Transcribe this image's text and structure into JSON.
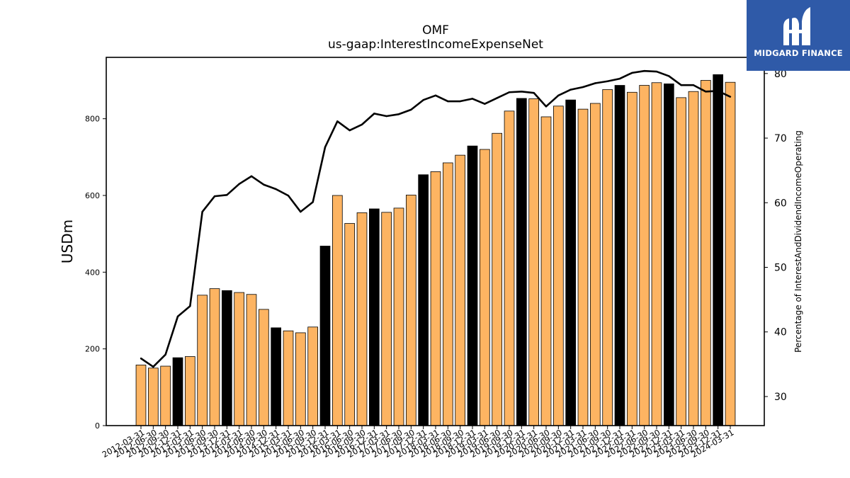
{
  "chart_data": {
    "type": "bar",
    "title": "OMF",
    "subtitle": "us-gaap:InterestIncomeExpenseNet",
    "ylabel": "USDm",
    "y2label": "Percentage of InterestAndDividendIncomeOperating",
    "ylim": [
      0,
      960
    ],
    "y2lim": [
      25.5,
      82.5
    ],
    "yticks": [
      0,
      200,
      400,
      600,
      800
    ],
    "y2ticks": [
      30,
      40,
      50,
      60,
      70,
      80
    ],
    "colors": {
      "bar_default": "#fdb462",
      "bar_q4": "#000000",
      "line": "#000000"
    },
    "categories": [
      "2012-03-31",
      "2012-06-30",
      "2012-09-30",
      "2012-12-31",
      "2013-03-31",
      "2013-06-30",
      "2013-09-30",
      "2013-12-31",
      "2014-03-31",
      "2014-06-30",
      "2014-09-30",
      "2014-12-31",
      "2015-03-31",
      "2015-06-30",
      "2015-09-30",
      "2015-12-31",
      "2016-03-31",
      "2016-06-30",
      "2016-09-30",
      "2016-12-31",
      "2017-03-31",
      "2017-06-30",
      "2017-09-30",
      "2017-12-31",
      "2018-03-31",
      "2018-06-30",
      "2018-09-30",
      "2018-12-31",
      "2019-03-31",
      "2019-06-30",
      "2019-09-30",
      "2019-12-31",
      "2020-03-31",
      "2020-06-30",
      "2020-09-30",
      "2020-12-31",
      "2021-03-31",
      "2021-06-30",
      "2021-09-30",
      "2021-12-31",
      "2022-03-31",
      "2022-06-30",
      "2022-09-30",
      "2022-12-31",
      "2023-03-31",
      "2023-06-30",
      "2023-09-30",
      "2023-12-31",
      "2024-03-31"
    ],
    "highlight": [
      false,
      false,
      false,
      true,
      false,
      false,
      false,
      true,
      false,
      false,
      false,
      true,
      false,
      false,
      false,
      true,
      false,
      false,
      false,
      true,
      false,
      false,
      false,
      true,
      false,
      false,
      false,
      true,
      false,
      false,
      false,
      true,
      false,
      false,
      false,
      true,
      false,
      false,
      false,
      true,
      false,
      false,
      false,
      true,
      false,
      false,
      false,
      true,
      false
    ],
    "series": [
      {
        "type": "bar",
        "values": [
          158,
          150,
          155,
          177,
          180,
          340,
          357,
          352,
          347,
          342,
          303,
          255,
          247,
          242,
          257,
          468,
          600,
          527,
          555,
          565,
          556,
          567,
          601,
          654,
          662,
          685,
          705,
          729,
          720,
          762,
          820,
          853,
          852,
          805,
          833,
          849,
          825,
          840,
          876,
          887,
          869,
          887,
          894,
          891,
          855,
          871,
          900,
          915,
          895
        ]
      },
      {
        "type": "line",
        "axis": "right",
        "values": [
          35.9,
          34.6,
          36.5,
          42.4,
          44.0,
          58.6,
          61.0,
          61.2,
          62.9,
          64.1,
          62.8,
          62.1,
          61.1,
          58.6,
          60.1,
          68.6,
          72.6,
          71.2,
          72.1,
          73.8,
          73.4,
          73.7,
          74.4,
          75.9,
          76.6,
          75.7,
          75.7,
          76.1,
          75.3,
          76.2,
          77.1,
          77.2,
          77.0,
          74.9,
          76.6,
          77.5,
          77.9,
          78.5,
          78.8,
          79.2,
          80.1,
          80.4,
          80.3,
          79.6,
          78.2,
          78.2,
          77.2,
          77.3,
          76.4
        ]
      }
    ]
  },
  "branding": {
    "logo_text": "MIDGARD FINANCE"
  }
}
